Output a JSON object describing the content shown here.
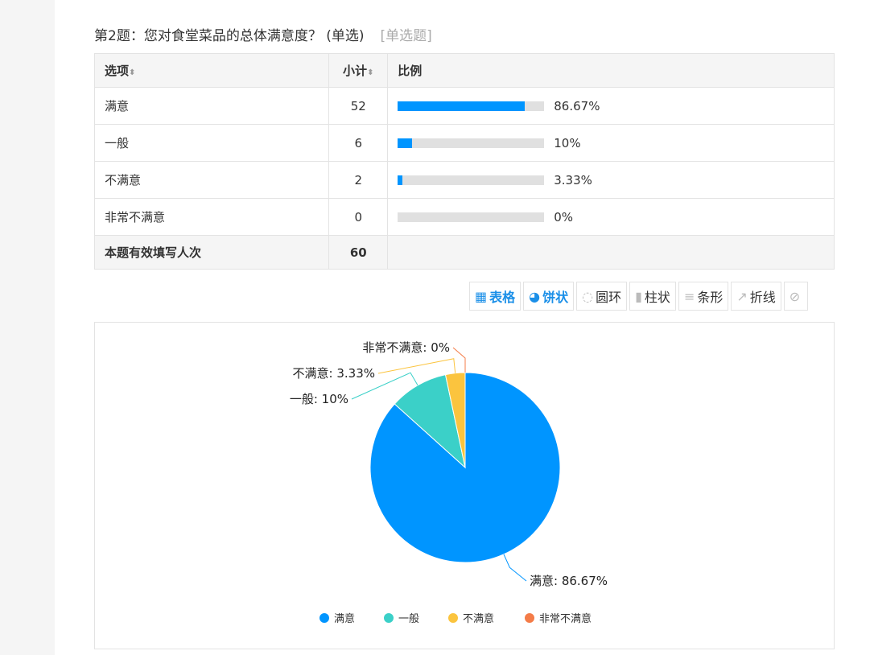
{
  "question": {
    "title": "第2题：您对食堂菜品的总体满意度？ (单选)",
    "type_tag": "[单选题]"
  },
  "table": {
    "headers": [
      "选项",
      "小计",
      "比例"
    ],
    "rows": [
      {
        "option": "满意",
        "count": "52",
        "percent": "86.67%",
        "fraction": 0.8667
      },
      {
        "option": "一般",
        "count": "6",
        "percent": "10%",
        "fraction": 0.1
      },
      {
        "option": "不满意",
        "count": "2",
        "percent": "3.33%",
        "fraction": 0.0333
      },
      {
        "option": "非常不满意",
        "count": "0",
        "percent": "0%",
        "fraction": 0
      }
    ],
    "footer": {
      "label": "本题有效填写人次",
      "count": "60"
    }
  },
  "toolbar": [
    {
      "label": "表格",
      "icon": "table-icon",
      "active": true
    },
    {
      "label": "饼状",
      "icon": "pie-icon",
      "active": true
    },
    {
      "label": "圆环",
      "icon": "donut-icon"
    },
    {
      "label": "柱状",
      "icon": "bar-chart-icon"
    },
    {
      "label": "条形",
      "icon": "horizontal-bar-icon"
    },
    {
      "label": "折线",
      "icon": "line-chart-icon"
    },
    {
      "label": "",
      "icon": "hide-icon"
    }
  ],
  "chart_data": {
    "type": "pie",
    "categories": [
      "满意",
      "一般",
      "不满意",
      "非常不满意"
    ],
    "values": [
      86.67,
      10,
      3.33,
      0
    ],
    "labels": [
      "满意: 86.67%",
      "一般: 10%",
      "不满意: 3.33%",
      "非常不满意: 0%"
    ],
    "colors": [
      "#0095ff",
      "#3bd0c8",
      "#fbc43e",
      "#f47c48"
    ],
    "legend": "bottom"
  }
}
